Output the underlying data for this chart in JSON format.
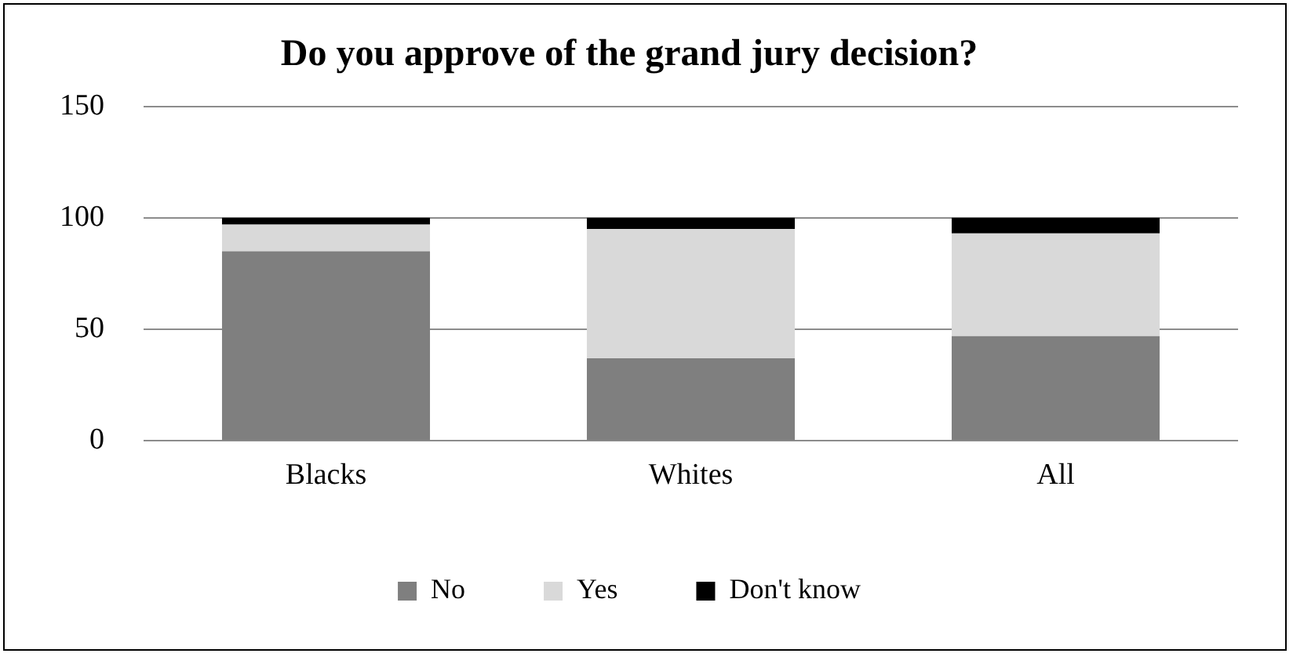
{
  "chart_data": {
    "type": "bar",
    "title": "Do you approve of the grand jury decision?",
    "categories": [
      "Blacks",
      "Whites",
      "All"
    ],
    "stacked": true,
    "series": [
      {
        "name": "No",
        "color": "#7f7f7f",
        "values": [
          85,
          37,
          47
        ]
      },
      {
        "name": "Yes",
        "color": "#d9d9d9",
        "values": [
          12,
          58,
          46
        ]
      },
      {
        "name": "Don't know",
        "color": "#000000",
        "values": [
          3,
          5,
          7
        ]
      }
    ],
    "ylim": [
      0,
      150
    ],
    "yticks": [
      0,
      50,
      100,
      150
    ],
    "grid": "y",
    "legend": "bottom"
  }
}
